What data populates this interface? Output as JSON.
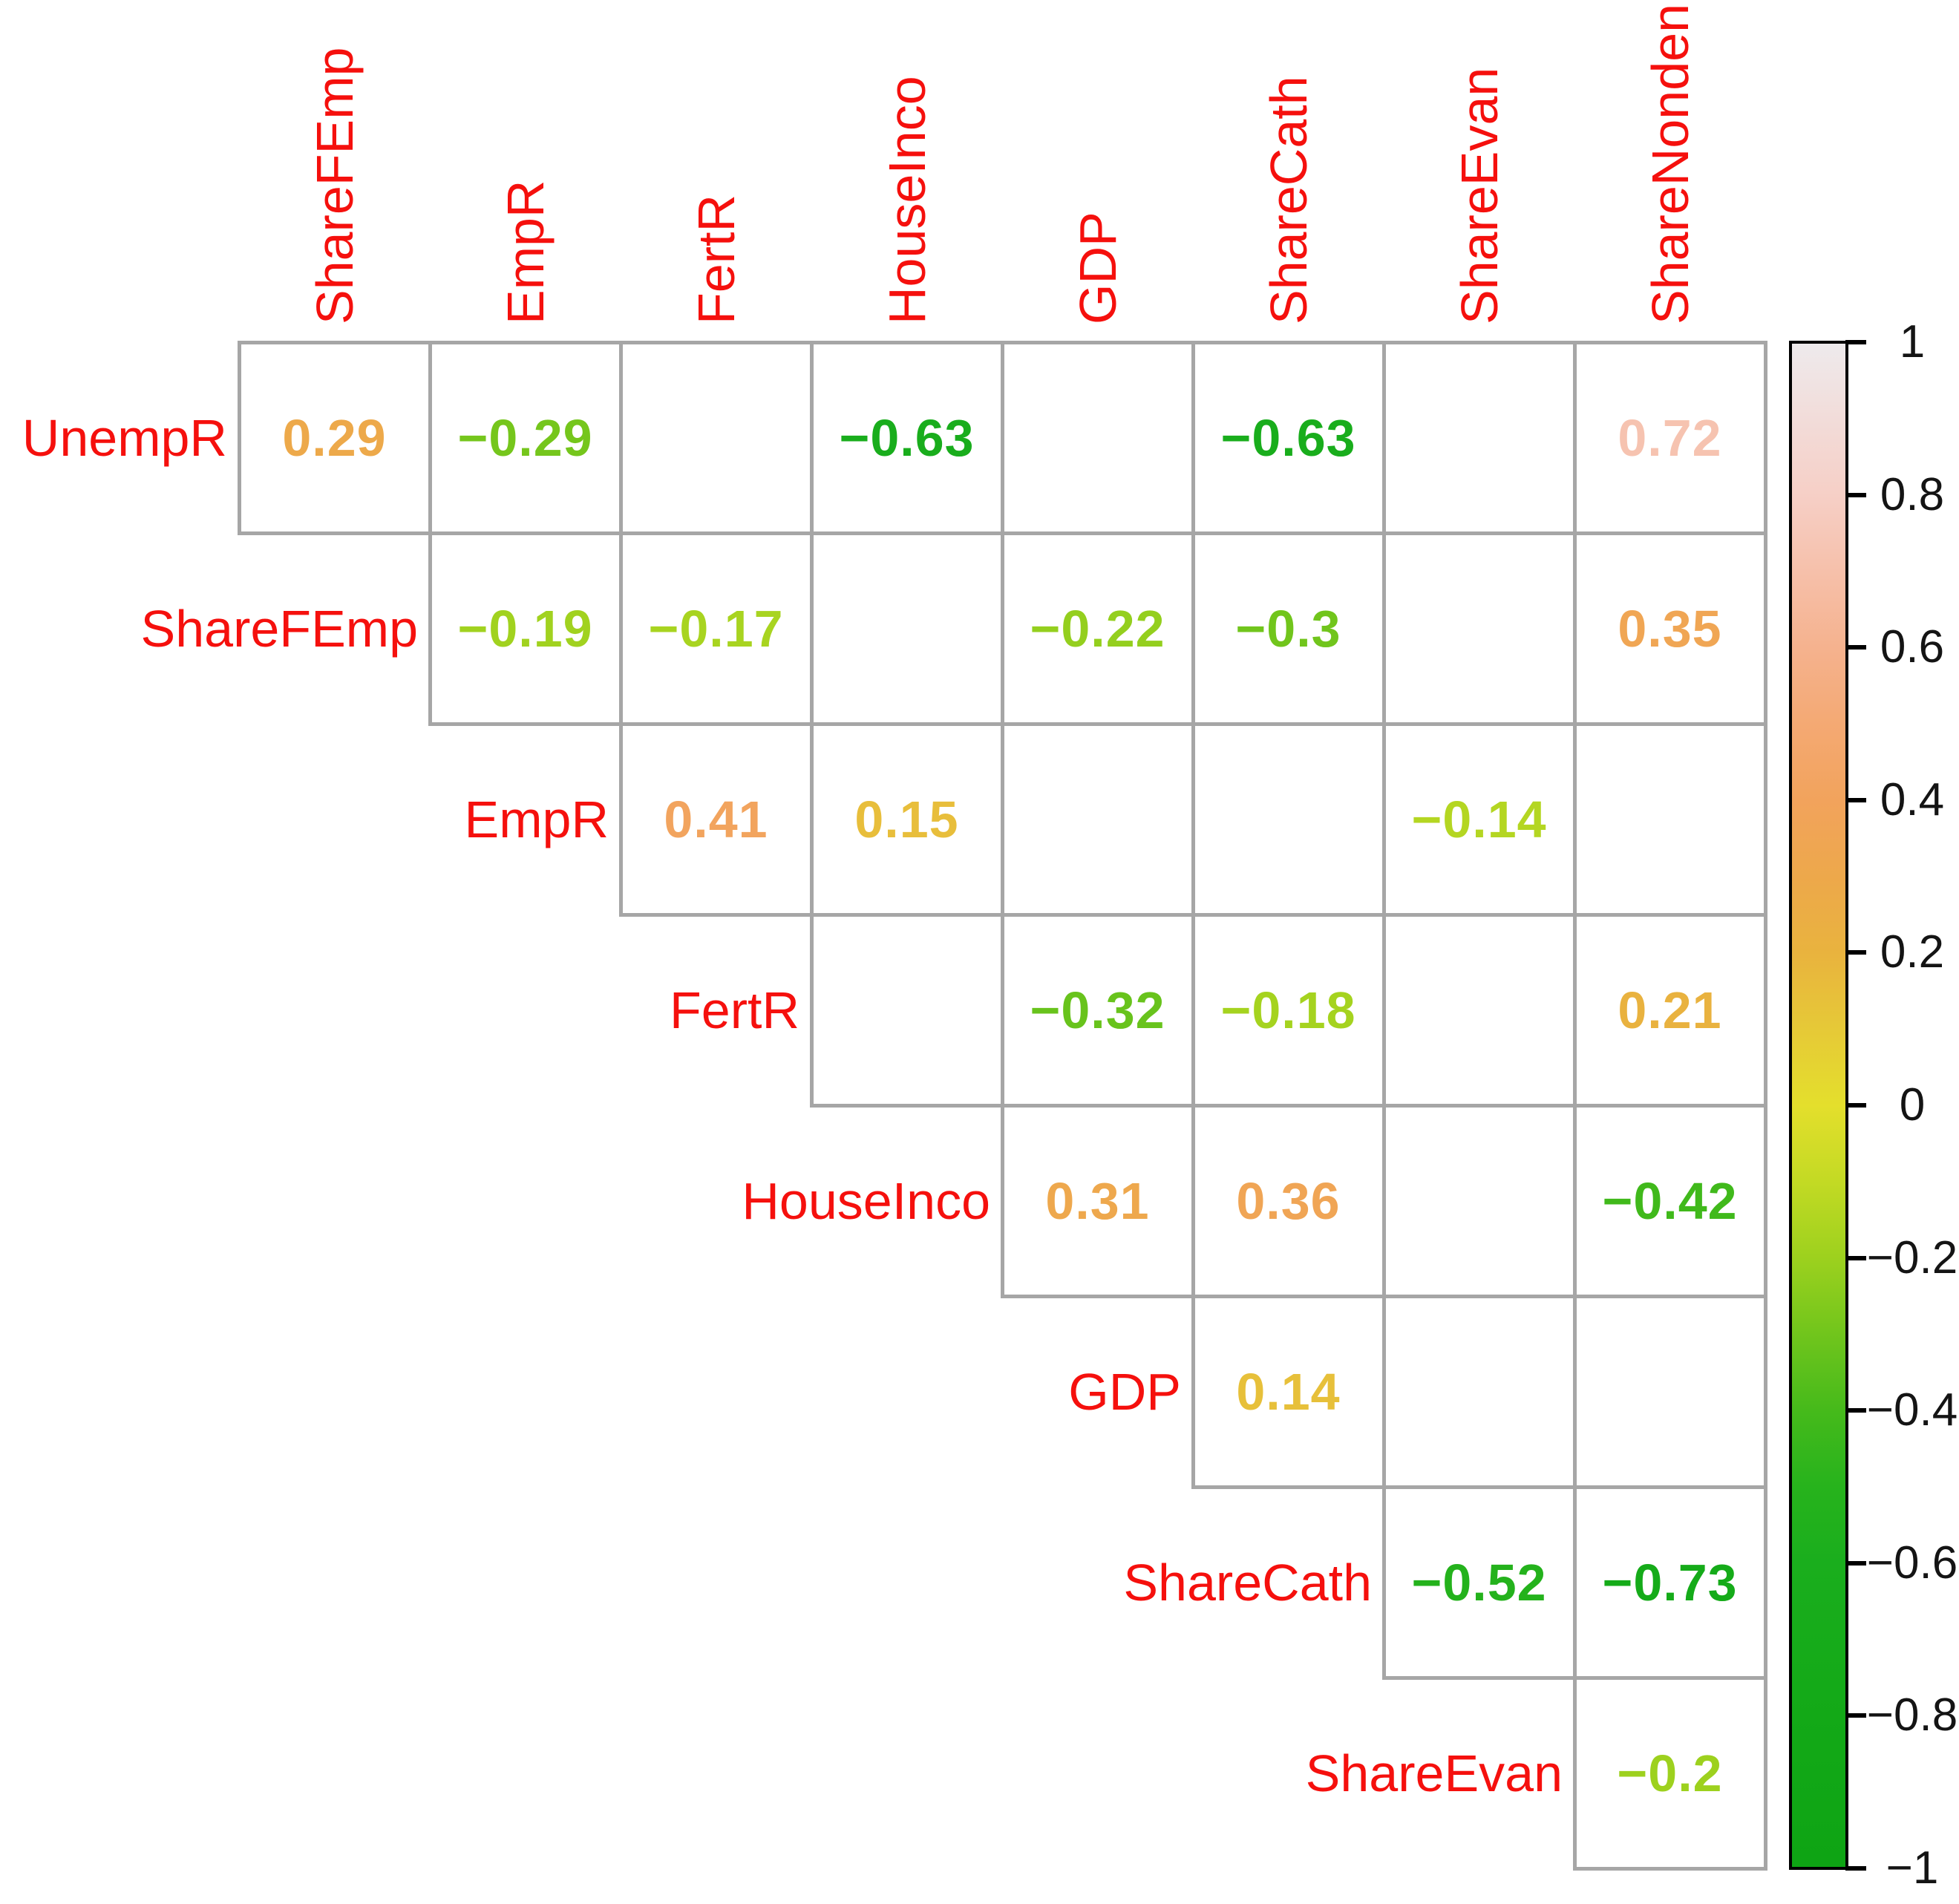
{
  "chart_data": {
    "type": "heatmap",
    "subtype": "correlation-matrix-upper-triangle",
    "title": "",
    "display_method": "numbers",
    "blank_cells_meaning": "correlation not shown (blank cell)",
    "variables": [
      "UnempR",
      "ShareFEmp",
      "EmpR",
      "FertR",
      "HouseInco",
      "GDP",
      "ShareCath",
      "ShareEvan",
      "ShareNonden"
    ],
    "col_labels": [
      "ShareFEmp",
      "EmpR",
      "FertR",
      "HouseInco",
      "GDP",
      "ShareCath",
      "ShareEvan",
      "ShareNonden"
    ],
    "row_labels": [
      "UnempR",
      "ShareFEmp",
      "EmpR",
      "FertR",
      "HouseInco",
      "GDP",
      "ShareCath",
      "ShareEvan"
    ],
    "rows": [
      {
        "label": "UnempR",
        "first_col": "ShareFEmp",
        "values": [
          0.29,
          -0.29,
          null,
          -0.63,
          null,
          -0.63,
          null,
          0.72
        ]
      },
      {
        "label": "ShareFEmp",
        "first_col": "EmpR",
        "values": [
          -0.19,
          -0.17,
          null,
          -0.22,
          -0.3,
          null,
          0.35
        ]
      },
      {
        "label": "EmpR",
        "first_col": "FertR",
        "values": [
          0.41,
          0.15,
          null,
          null,
          -0.14,
          null
        ]
      },
      {
        "label": "FertR",
        "first_col": "HouseInco",
        "values": [
          null,
          -0.32,
          -0.18,
          null,
          0.21
        ]
      },
      {
        "label": "HouseInco",
        "first_col": "GDP",
        "values": [
          0.31,
          0.36,
          null,
          -0.42
        ]
      },
      {
        "label": "GDP",
        "first_col": "ShareCath",
        "values": [
          0.14,
          null,
          null
        ]
      },
      {
        "label": "ShareCath",
        "first_col": "ShareEvan",
        "values": [
          -0.52,
          -0.73
        ]
      },
      {
        "label": "ShareEvan",
        "first_col": "ShareNonden",
        "values": [
          -0.2
        ]
      }
    ],
    "colors": {
      "text_label": "#f5100d",
      "grid_line": "#a6a6a6",
      "colorbar_border": "#000000",
      "tick_label": "#141414",
      "background": "#ffffff"
    },
    "colorbar": {
      "min": -1,
      "max": 1,
      "ticks": [
        1,
        0.8,
        0.6,
        0.4,
        0.2,
        0,
        -0.2,
        -0.4,
        -0.6,
        -0.8,
        -1
      ],
      "tick_labels": [
        "1",
        "0.8",
        "0.6",
        "0.4",
        "0.2",
        "0",
        "−0.2",
        "−0.4",
        "−0.6",
        "−0.8",
        "−1"
      ],
      "gradient_stops": [
        {
          "v": -1.0,
          "c": "#0ea414"
        },
        {
          "v": -0.8,
          "c": "#13a917"
        },
        {
          "v": -0.6,
          "c": "#1aae1d"
        },
        {
          "v": -0.5,
          "c": "#27b31c"
        },
        {
          "v": -0.4,
          "c": "#46ba1b"
        },
        {
          "v": -0.3,
          "c": "#71c51c"
        },
        {
          "v": -0.2,
          "c": "#9dd11e"
        },
        {
          "v": -0.1,
          "c": "#c3da24"
        },
        {
          "v": 0.0,
          "c": "#e4df2c"
        },
        {
          "v": 0.1,
          "c": "#e6c937"
        },
        {
          "v": 0.2,
          "c": "#e9b33e"
        },
        {
          "v": 0.3,
          "c": "#eda84b"
        },
        {
          "v": 0.4,
          "c": "#f2a35c"
        },
        {
          "v": 0.5,
          "c": "#f4a973"
        },
        {
          "v": 0.6,
          "c": "#f5b28e"
        },
        {
          "v": 0.7,
          "c": "#f6c0aa"
        },
        {
          "v": 0.8,
          "c": "#f6cfc6"
        },
        {
          "v": 0.9,
          "c": "#f2dcd9"
        },
        {
          "v": 1.0,
          "c": "#eeeaec"
        }
      ]
    }
  }
}
